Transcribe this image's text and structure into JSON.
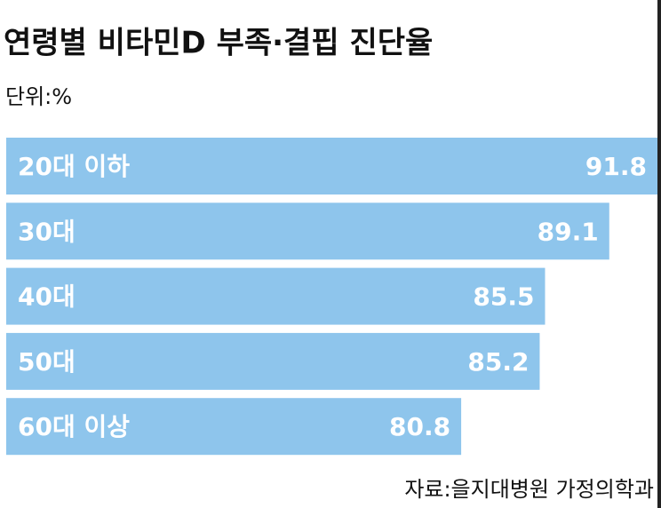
{
  "chart_data": {
    "type": "bar",
    "orientation": "horizontal",
    "title": "연령별 비타민D 부족·결핍 진단율",
    "subtitle": "단위:%",
    "source": "자료:을지대병원 가정의학과",
    "categories": [
      "20대 이하",
      "30대",
      "40대",
      "50대",
      "60대 이상"
    ],
    "values": [
      91.8,
      89.1,
      85.5,
      85.2,
      80.8
    ],
    "color": "#8ec5ec",
    "xlim": [
      55.3,
      91.8
    ]
  }
}
